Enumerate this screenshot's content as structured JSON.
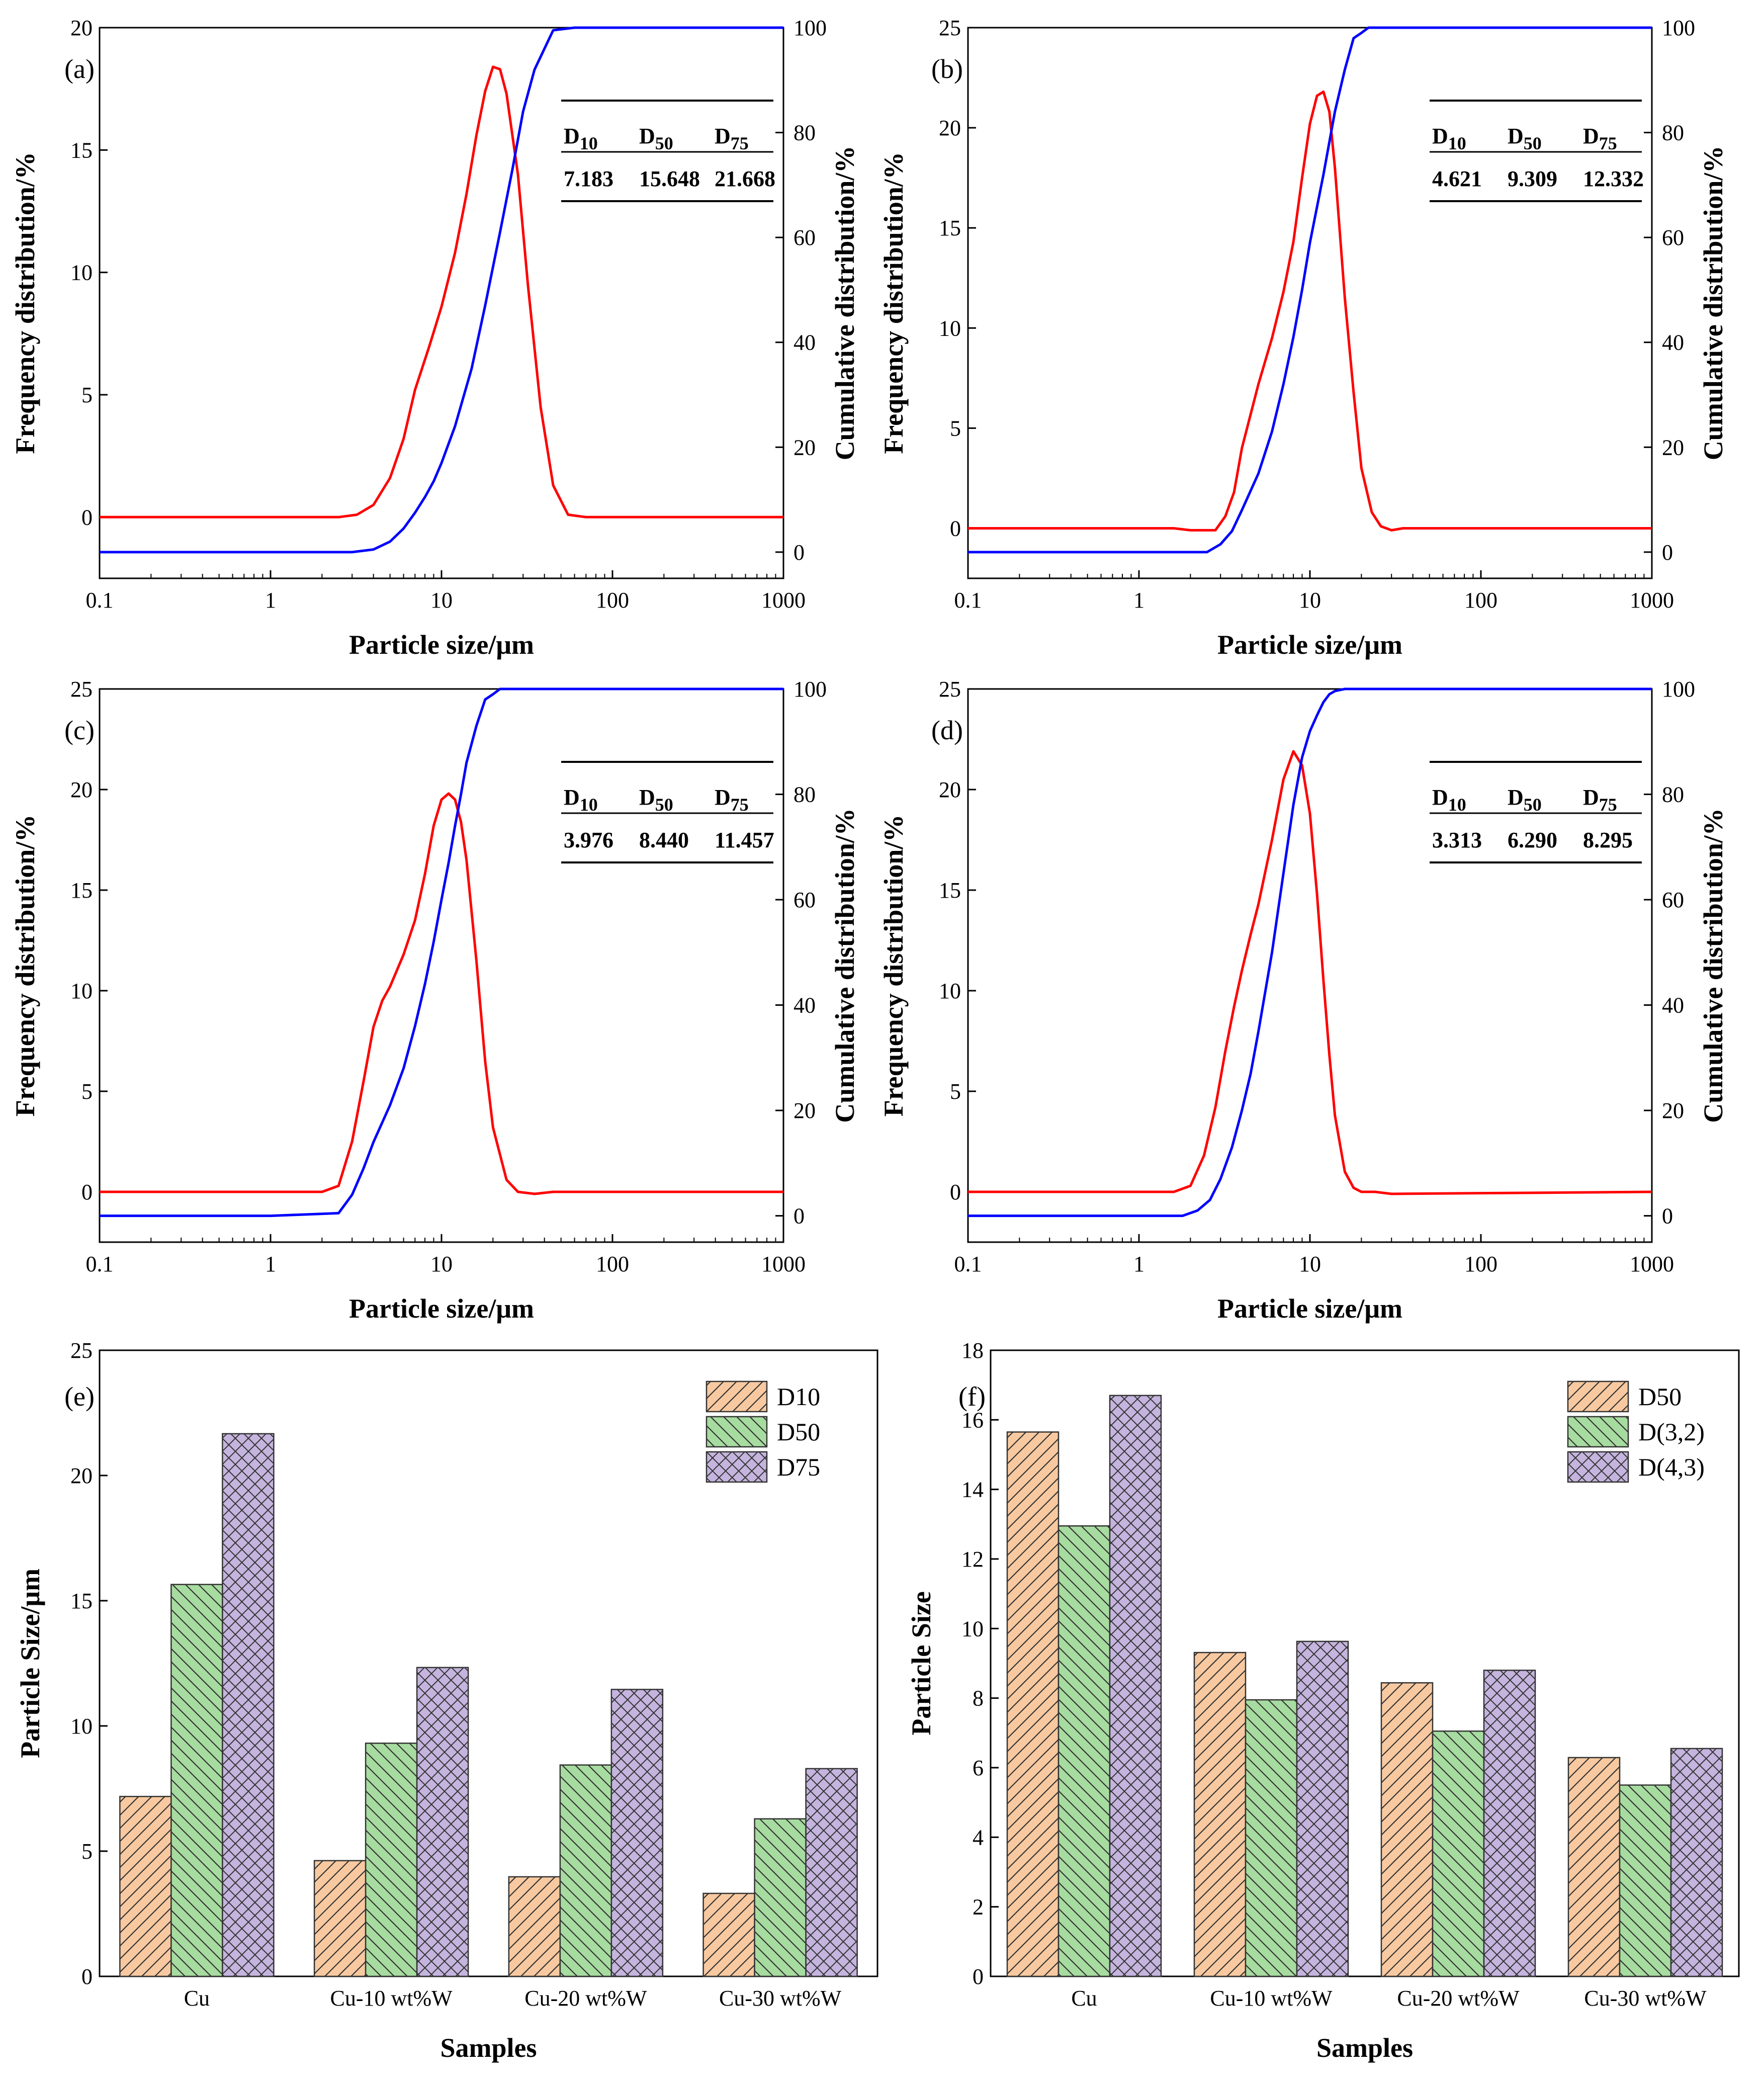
{
  "colors": {
    "frequency_line": "#ff0000",
    "cumulative_line": "#0000ff",
    "bar_fill_1": "#f8c9a0",
    "bar_fill_2": "#a7dca0",
    "bar_fill_3": "#c4b4de"
  },
  "chart_data": [
    {
      "panel": "(a)",
      "type": "line",
      "xscale": "log",
      "xlabel": "Particle size/μm",
      "ylabel": "Frequency distribution/%",
      "y2label": "Cumulative distribution/%",
      "xlim": [
        0.1,
        1000
      ],
      "ylim": [
        -2.5,
        20
      ],
      "y2lim": [
        -5,
        100
      ],
      "xticks": [
        "0.1",
        "1",
        "10",
        "100",
        "1000"
      ],
      "yticks": [
        0,
        5,
        10,
        15,
        20
      ],
      "y2ticks": [
        0,
        20,
        40,
        60,
        80,
        100
      ],
      "table": {
        "headers": [
          "D10",
          "D50",
          "D75"
        ],
        "values": [
          "7.183",
          "15.648",
          "21.668"
        ]
      },
      "series": [
        {
          "name": "Frequency",
          "axis": "left",
          "color": "#ff0000",
          "x": [
            0.1,
            1,
            2.5,
            3.2,
            4,
            5,
            6,
            7,
            8.5,
            10,
            12,
            14,
            16,
            18,
            20,
            22,
            24,
            28,
            32,
            38,
            45,
            55,
            70,
            100,
            1000
          ],
          "y": [
            0,
            0,
            0,
            0.1,
            0.5,
            1.6,
            3.2,
            5.2,
            7.0,
            8.6,
            10.8,
            13.2,
            15.6,
            17.4,
            18.4,
            18.3,
            17.3,
            14.0,
            9.5,
            4.5,
            1.3,
            0.1,
            0,
            0,
            0
          ]
        },
        {
          "name": "Cumulative",
          "axis": "right",
          "color": "#0000ff",
          "x": [
            0.1,
            1,
            3,
            4,
            5,
            6,
            7,
            8,
            9,
            10,
            12,
            15,
            18,
            22,
            26,
            30,
            35,
            45,
            60,
            100,
            1000
          ],
          "y": [
            0,
            0,
            0,
            0.5,
            2,
            4.5,
            7.5,
            10.5,
            13.5,
            17,
            24,
            35,
            47,
            61,
            73,
            84,
            92,
            99.5,
            100,
            100,
            100
          ]
        }
      ]
    },
    {
      "panel": "(b)",
      "type": "line",
      "xscale": "log",
      "xlabel": "Particle size/μm",
      "ylabel": "Frequency distribution/%",
      "y2label": "Cumulative distribution/%",
      "xlim": [
        0.1,
        1000
      ],
      "ylim": [
        -2.5,
        25
      ],
      "y2lim": [
        -5,
        100
      ],
      "xticks": [
        "0.1",
        "1",
        "10",
        "100",
        "1000"
      ],
      "yticks": [
        0,
        5,
        10,
        15,
        20,
        25
      ],
      "y2ticks": [
        0,
        20,
        40,
        60,
        80,
        100
      ],
      "table": {
        "headers": [
          "D10",
          "D50",
          "D75"
        ],
        "values": [
          "4.621",
          "9.309",
          "12.332"
        ]
      },
      "series": [
        {
          "name": "Frequency",
          "axis": "left",
          "color": "#ff0000",
          "x": [
            0.1,
            1,
            1.6,
            2,
            2.4,
            2.8,
            3.2,
            3.6,
            4,
            5,
            6,
            7,
            8,
            9,
            10,
            11,
            12,
            13,
            14,
            16,
            18,
            20,
            23,
            26,
            30,
            35,
            45,
            1000
          ],
          "y": [
            0,
            0,
            0,
            -0.1,
            -0.1,
            -0.1,
            0.6,
            1.8,
            4.0,
            7.2,
            9.5,
            11.8,
            14.3,
            17.5,
            20.2,
            21.6,
            21.8,
            20.8,
            18.0,
            11.5,
            6.8,
            3.0,
            0.8,
            0.1,
            -0.1,
            0,
            0,
            0
          ]
        },
        {
          "name": "Cumulative",
          "axis": "right",
          "color": "#0000ff",
          "x": [
            0.1,
            1,
            2.5,
            3,
            3.5,
            4,
            5,
            6,
            7,
            8,
            9,
            10,
            12,
            14,
            16,
            18,
            20,
            22,
            30,
            1000
          ],
          "y": [
            0,
            0,
            0,
            1.5,
            4,
            8,
            15,
            23,
            32,
            41,
            50,
            59,
            72,
            84,
            92,
            98,
            99,
            100,
            100,
            100
          ]
        }
      ]
    },
    {
      "panel": "(c)",
      "type": "line",
      "xscale": "log",
      "xlabel": "Particle size/μm",
      "ylabel": "Frequency distribution/%",
      "y2label": "Cumulative distribution/%",
      "xlim": [
        0.1,
        1000
      ],
      "ylim": [
        -2.5,
        25
      ],
      "y2lim": [
        -5,
        100
      ],
      "xticks": [
        "0.1",
        "1",
        "10",
        "100",
        "1000"
      ],
      "yticks": [
        0,
        5,
        10,
        15,
        20,
        25
      ],
      "y2ticks": [
        0,
        20,
        40,
        60,
        80,
        100
      ],
      "table": {
        "headers": [
          "D10",
          "D50",
          "D75"
        ],
        "values": [
          "3.976",
          "8.440",
          "11.457"
        ]
      },
      "series": [
        {
          "name": "Frequency",
          "axis": "left",
          "color": "#ff0000",
          "x": [
            0.1,
            1,
            2,
            2.5,
            3,
            3.5,
            4,
            4.5,
            5,
            6,
            7,
            8,
            9,
            10,
            11,
            12,
            13,
            14,
            16,
            18,
            20,
            24,
            28,
            35,
            45,
            1000
          ],
          "y": [
            0,
            0,
            0,
            0.3,
            2.5,
            5.5,
            8.2,
            9.5,
            10.2,
            11.8,
            13.5,
            15.8,
            18.2,
            19.5,
            19.8,
            19.5,
            18.4,
            16.5,
            11.5,
            6.5,
            3.2,
            0.6,
            0,
            -0.1,
            0,
            0
          ]
        },
        {
          "name": "Cumulative",
          "axis": "right",
          "color": "#0000ff",
          "x": [
            0.1,
            1,
            2.5,
            3,
            3.5,
            4,
            5,
            6,
            7,
            8,
            9,
            10,
            11,
            12,
            13,
            14,
            16,
            18,
            20,
            22,
            30,
            1000
          ],
          "y": [
            0,
            0,
            0.5,
            4,
            9,
            14,
            21,
            28,
            36,
            44,
            52,
            60,
            67,
            74,
            80,
            86,
            93,
            98,
            99,
            100,
            100,
            100
          ]
        }
      ]
    },
    {
      "panel": "(d)",
      "type": "line",
      "xscale": "log",
      "xlabel": "Particle size/μm",
      "ylabel": "Frequency distribution/%",
      "y2label": "Cumulative distribution/%",
      "xlim": [
        0.1,
        1000
      ],
      "ylim": [
        -2.5,
        25
      ],
      "y2lim": [
        -5,
        100
      ],
      "xticks": [
        "0.1",
        "1",
        "10",
        "100",
        "1000"
      ],
      "yticks": [
        0,
        5,
        10,
        15,
        20,
        25
      ],
      "y2ticks": [
        0,
        20,
        40,
        60,
        80,
        100
      ],
      "table": {
        "headers": [
          "D10",
          "D50",
          "D75"
        ],
        "values": [
          "3.313",
          "6.290",
          "8.295"
        ]
      },
      "series": [
        {
          "name": "Frequency",
          "axis": "left",
          "color": "#ff0000",
          "x": [
            0.1,
            1,
            1.6,
            2,
            2.4,
            2.8,
            3.2,
            3.6,
            4,
            4.5,
            5,
            6,
            7,
            8,
            9,
            10,
            11,
            12,
            13,
            14,
            16,
            18,
            20,
            24,
            30,
            1000
          ],
          "y": [
            0,
            0,
            0,
            0.3,
            1.8,
            4.2,
            7.0,
            9.2,
            11.0,
            12.8,
            14.3,
            17.5,
            20.5,
            21.9,
            21.2,
            18.8,
            14.8,
            10.5,
            6.8,
            3.8,
            1.0,
            0.2,
            0,
            0,
            -0.1,
            0
          ]
        },
        {
          "name": "Cumulative",
          "axis": "right",
          "color": "#0000ff",
          "x": [
            0.1,
            1,
            1.8,
            2.2,
            2.6,
            3,
            3.5,
            4,
            4.5,
            5,
            6,
            7,
            8,
            9,
            10,
            11,
            12,
            13,
            14,
            16,
            18,
            20,
            1000
          ],
          "y": [
            0,
            0,
            0,
            1,
            3,
            7,
            13,
            20,
            27,
            35,
            50,
            65,
            78,
            87,
            92,
            95,
            97.5,
            99,
            99.6,
            100,
            100,
            100,
            100
          ]
        }
      ]
    },
    {
      "panel": "(e)",
      "type": "bar",
      "xlabel": "Samples",
      "ylabel": "Particle Size/μm",
      "ylim": [
        0,
        25
      ],
      "yticks": [
        0,
        5,
        10,
        15,
        20,
        25
      ],
      "categories": [
        "Cu",
        "Cu-10 wt%W",
        "Cu-20 wt%W",
        "Cu-30 wt%W"
      ],
      "series": [
        {
          "name": "D10",
          "pattern": "diagonal-forward",
          "color": "#f8c9a0",
          "values": [
            7.183,
            4.621,
            3.976,
            3.313
          ]
        },
        {
          "name": "D50",
          "pattern": "diagonal-back",
          "color": "#a7dca0",
          "values": [
            15.648,
            9.309,
            8.44,
            6.29
          ]
        },
        {
          "name": "D75",
          "pattern": "crosshatch",
          "color": "#c4b4de",
          "values": [
            21.668,
            12.332,
            11.457,
            8.295
          ]
        }
      ]
    },
    {
      "panel": "(f)",
      "type": "bar",
      "xlabel": "Samples",
      "ylabel": "Particle Size",
      "ylim": [
        0,
        18
      ],
      "yticks": [
        0,
        2,
        4,
        6,
        8,
        10,
        12,
        14,
        16,
        18
      ],
      "categories": [
        "Cu",
        "Cu-10 wt%W",
        "Cu-20 wt%W",
        "Cu-30 wt%W"
      ],
      "series": [
        {
          "name": "D50",
          "pattern": "diagonal-forward",
          "color": "#f8c9a0",
          "values": [
            15.65,
            9.31,
            8.44,
            6.29
          ]
        },
        {
          "name": "D(3,2)",
          "pattern": "diagonal-back",
          "color": "#a7dca0",
          "values": [
            12.95,
            7.95,
            7.05,
            5.5
          ]
        },
        {
          "name": "D(4,3)",
          "pattern": "crosshatch",
          "color": "#c4b4de",
          "values": [
            16.7,
            9.63,
            8.8,
            6.55
          ]
        }
      ]
    }
  ]
}
